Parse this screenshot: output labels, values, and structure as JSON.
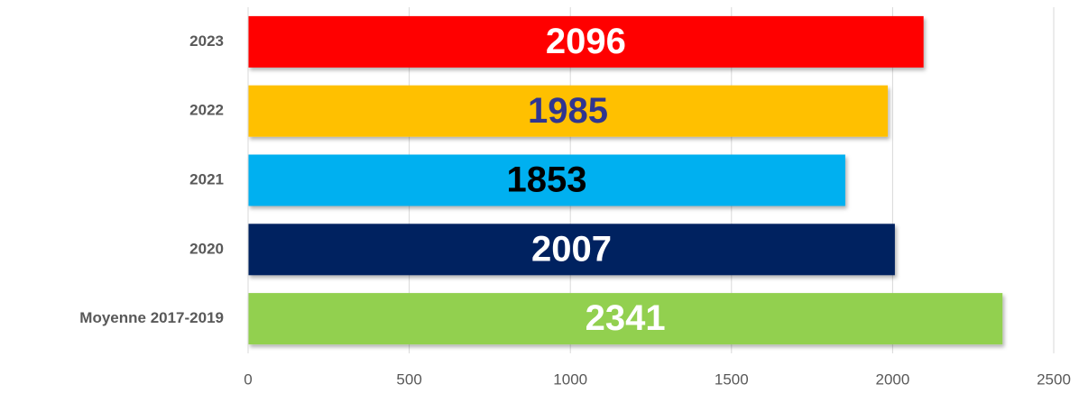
{
  "chart_data": {
    "type": "barh",
    "categories": [
      "2023",
      "2022",
      "2021",
      "2020",
      "Moyenne 2017-2019"
    ],
    "values": [
      2096,
      1985,
      1853,
      2007,
      2341
    ],
    "colors": [
      "#ff0000",
      "#ffc000",
      "#00b0f0",
      "#002060",
      "#92d050"
    ],
    "label_colors": [
      "#ffffff",
      "#2f3590",
      "#000000",
      "#ffffff",
      "#ffffff"
    ],
    "xlim": [
      0,
      2500
    ],
    "xticks": [
      0,
      500,
      1000,
      1500,
      2000,
      2500
    ],
    "grid": true
  }
}
